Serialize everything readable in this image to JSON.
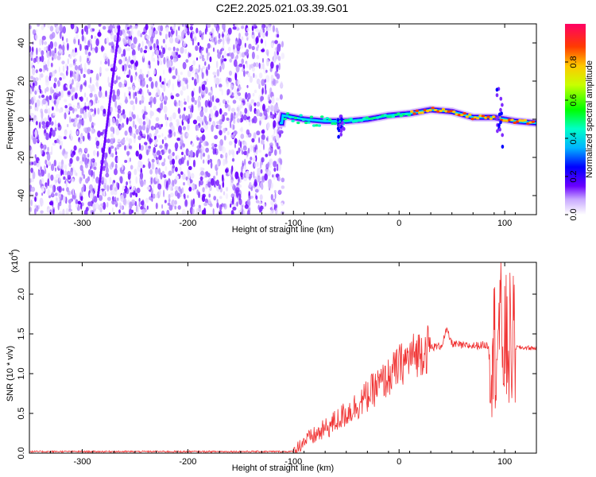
{
  "title": "C2E2.2025.021.03.39.G01",
  "chart_data": [
    {
      "type": "heatmap",
      "xlabel": "Height of straight line (km)",
      "ylabel": "Frequency (Hz)",
      "xlim": [
        -350,
        130
      ],
      "ylim": [
        -50,
        50
      ],
      "xticks": [
        -300,
        -200,
        -100,
        0,
        100
      ],
      "yticks": [
        -40,
        -20,
        0,
        20,
        40
      ],
      "colorbar": {
        "label": "Normalized spectral amplitude",
        "range": [
          0,
          1
        ],
        "ticks": [
          "0.0",
          "0.2",
          "0.4",
          "0.6",
          "0.8"
        ]
      },
      "tracked_frequency": {
        "x": [
          -110,
          -90,
          -70,
          -50,
          -30,
          -10,
          10,
          30,
          50,
          70,
          90,
          100,
          110,
          130
        ],
        "y": [
          2,
          0,
          -1,
          -1,
          0,
          2,
          3,
          5,
          4,
          1,
          1,
          0,
          -1,
          -2
        ]
      }
    },
    {
      "type": "line",
      "xlabel": "Height of straight line (km)",
      "ylabel": "SNR (10 * v/v)",
      "yscale_label": "(x10",
      "yscale_exp": "4",
      "xlim": [
        -350,
        130
      ],
      "ylim": [
        0,
        2.4
      ],
      "xticks": [
        -300,
        -200,
        -100,
        0,
        100
      ],
      "yticks": [
        "0.0",
        "0.5",
        "1.0",
        "1.5",
        "2.0"
      ],
      "color": "#f03030",
      "series": [
        {
          "x": [
            -350,
            -100,
            -90,
            -80,
            -70,
            -60,
            -50,
            -40,
            -30,
            -20,
            -10,
            0,
            10,
            20,
            30,
            40,
            45,
            50,
            60,
            70,
            80,
            90,
            95,
            100,
            105,
            110,
            130
          ],
          "y": [
            0.02,
            0.02,
            0.15,
            0.22,
            0.3,
            0.4,
            0.5,
            0.6,
            0.72,
            0.85,
            0.95,
            1.1,
            1.2,
            1.28,
            1.33,
            1.35,
            1.55,
            1.38,
            1.35,
            1.35,
            1.36,
            1.35,
            1.6,
            1.35,
            1.4,
            1.33,
            1.32
          ]
        }
      ]
    }
  ]
}
